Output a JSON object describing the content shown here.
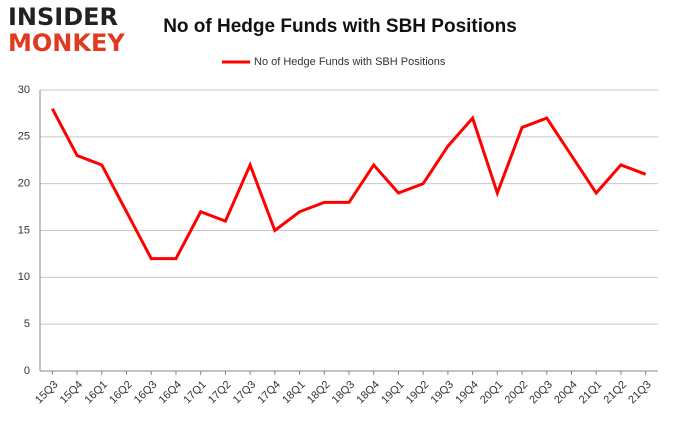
{
  "logo": {
    "line1": "INSIDER",
    "line2": "MONKEY"
  },
  "chart_data": {
    "type": "line",
    "title": "No of Hedge Funds with SBH Positions",
    "categories": [
      "15Q3",
      "15Q4",
      "16Q1",
      "16Q2",
      "16Q3",
      "16Q4",
      "17Q1",
      "17Q2",
      "17Q3",
      "17Q4",
      "18Q1",
      "18Q2",
      "18Q3",
      "18Q4",
      "19Q1",
      "19Q2",
      "19Q3",
      "19Q4",
      "20Q1",
      "20Q2",
      "20Q3",
      "20Q4",
      "21Q1",
      "21Q2",
      "21Q3"
    ],
    "series": [
      {
        "name": "No of Hedge Funds with SBH Positions",
        "color": "#ff0000",
        "values": [
          28,
          23,
          22,
          17,
          12,
          12,
          17,
          16,
          22,
          15,
          17,
          18,
          18,
          22,
          19,
          20,
          24,
          27,
          19,
          26,
          27,
          23,
          19,
          22,
          21
        ]
      }
    ],
    "ylim": [
      0,
      30
    ],
    "yticks": [
      0,
      5,
      10,
      15,
      20,
      25,
      30
    ],
    "grid": true,
    "legend": "top"
  }
}
